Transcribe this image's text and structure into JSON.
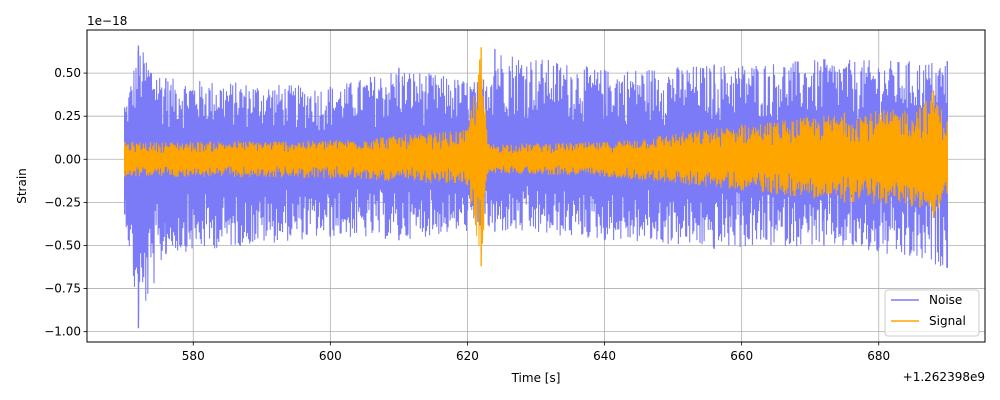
{
  "chart_data": {
    "type": "line",
    "title": "",
    "xlabel": "Time [s]",
    "ylabel": "Strain",
    "x_offset_label": "+1.262398e9",
    "y_scale_label": "1e−18",
    "xlim": [
      564.5,
      695.5
    ],
    "ylim": [
      -1.06,
      0.75
    ],
    "x_ticks": [
      580,
      600,
      620,
      640,
      660,
      680
    ],
    "x_tick_labels": [
      "580",
      "600",
      "620",
      "640",
      "660",
      "680"
    ],
    "y_ticks": [
      -1.0,
      -0.75,
      -0.5,
      -0.25,
      0.0,
      0.25,
      0.5
    ],
    "y_tick_labels": [
      "−1.00",
      "−0.75",
      "−0.50",
      "−0.25",
      "0.00",
      "0.25",
      "0.50"
    ],
    "grid": true,
    "legend": {
      "placement": "lower-right"
    },
    "series": [
      {
        "name": "Noise",
        "color": "#7b7bf7",
        "x_range": [
          570,
          690
        ],
        "envelope": [
          {
            "x": 570,
            "upper": 0.3,
            "lower": -0.32
          },
          {
            "x": 572,
            "upper": 0.66,
            "lower": -0.98
          },
          {
            "x": 576,
            "upper": 0.47,
            "lower": -0.55
          },
          {
            "x": 600,
            "upper": 0.42,
            "lower": -0.45
          },
          {
            "x": 610,
            "upper": 0.53,
            "lower": -0.47
          },
          {
            "x": 622,
            "upper": 0.45,
            "lower": -0.41
          },
          {
            "x": 624,
            "upper": 0.64,
            "lower": -0.42
          },
          {
            "x": 640,
            "upper": 0.52,
            "lower": -0.47
          },
          {
            "x": 656,
            "upper": 0.55,
            "lower": -0.52
          },
          {
            "x": 672,
            "upper": 0.58,
            "lower": -0.5
          },
          {
            "x": 690,
            "upper": 0.57,
            "lower": -0.63
          }
        ]
      },
      {
        "name": "Signal",
        "color": "#ffa500",
        "x_range": [
          570,
          690
        ],
        "envelope": [
          {
            "x": 570,
            "upper": 0.1,
            "lower": -0.1
          },
          {
            "x": 600,
            "upper": 0.11,
            "lower": -0.11
          },
          {
            "x": 620,
            "upper": 0.17,
            "lower": -0.15
          },
          {
            "x": 622,
            "upper": 0.65,
            "lower": -0.62
          },
          {
            "x": 623,
            "upper": 0.09,
            "lower": -0.08
          },
          {
            "x": 640,
            "upper": 0.1,
            "lower": -0.1
          },
          {
            "x": 660,
            "upper": 0.2,
            "lower": -0.18
          },
          {
            "x": 675,
            "upper": 0.27,
            "lower": -0.25
          },
          {
            "x": 686,
            "upper": 0.3,
            "lower": -0.28
          },
          {
            "x": 688,
            "upper": 0.4,
            "lower": -0.34
          },
          {
            "x": 690,
            "upper": 0.22,
            "lower": -0.2
          }
        ]
      }
    ]
  }
}
